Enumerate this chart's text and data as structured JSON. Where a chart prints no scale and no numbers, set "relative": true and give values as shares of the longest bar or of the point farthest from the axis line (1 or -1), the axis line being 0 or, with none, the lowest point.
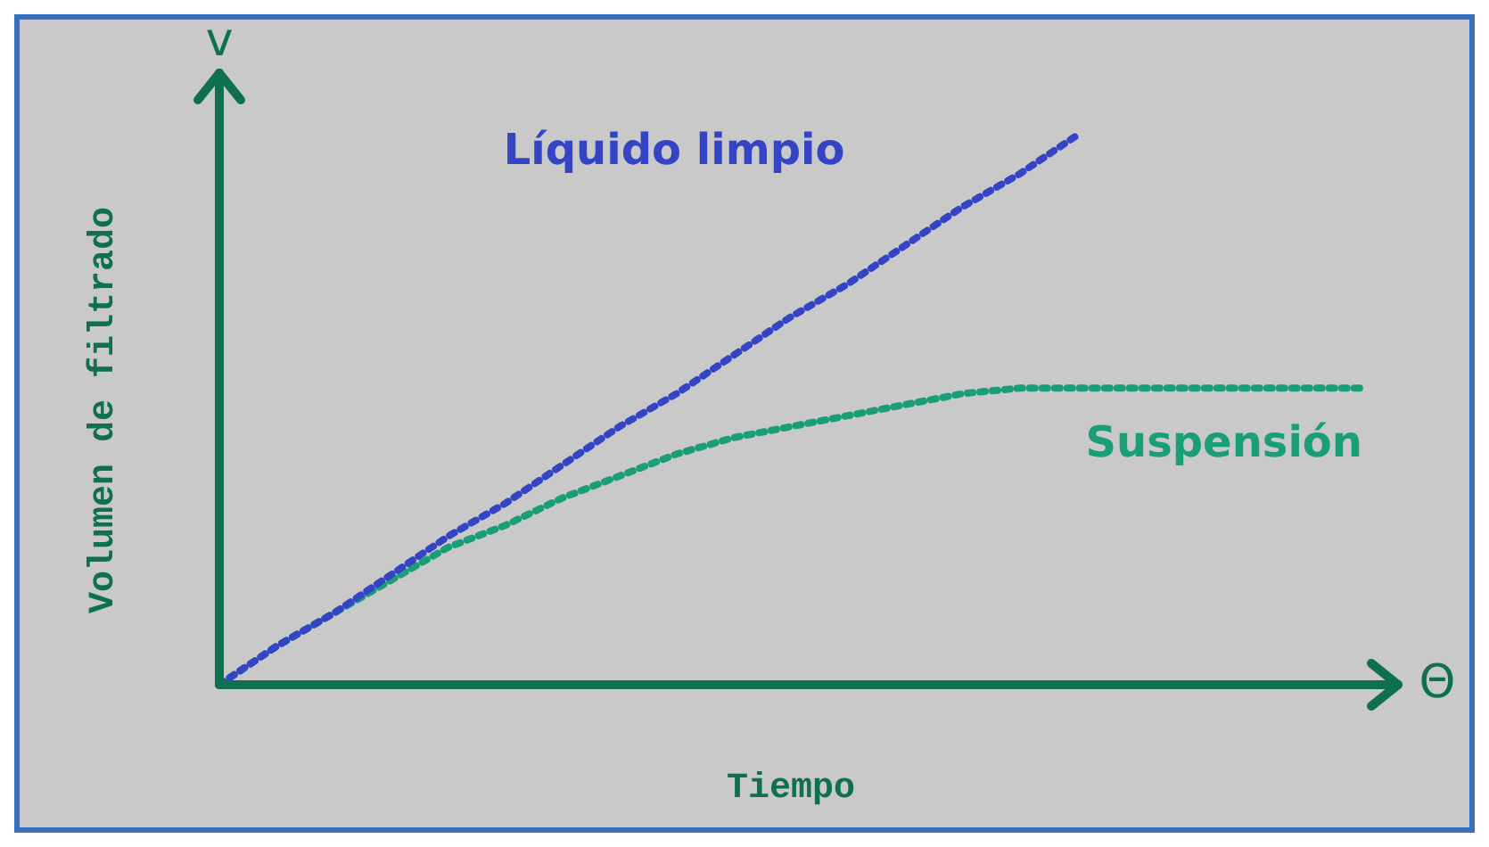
{
  "chart_data": {
    "type": "line",
    "relative": true,
    "xlabel": "Tiempo",
    "ylabel": "Volumen de filtrado",
    "annotations": [
      "v",
      "Θ"
    ],
    "categories": [
      null,
      null,
      null,
      null,
      null,
      null,
      null,
      null,
      null,
      null,
      null,
      null,
      null,
      null,
      null,
      null,
      null,
      null,
      null,
      null,
      null
    ],
    "series": [
      {
        "name": "Líquido limpio",
        "color": "#3344c4",
        "values": [
          0,
          0.07,
          0.13,
          0.2,
          0.27,
          0.33,
          0.4,
          0.47,
          0.53,
          0.6,
          0.67,
          0.73,
          0.8,
          0.87,
          0.93,
          1,
          null,
          null,
          null,
          null,
          null
        ]
      },
      {
        "name": "Suspensión",
        "color": "#1a9e78",
        "values": [
          0,
          0.07,
          0.13,
          0.19,
          0.25,
          0.29,
          0.34,
          0.38,
          0.42,
          0.45,
          0.47,
          0.49,
          0.51,
          0.53,
          0.54,
          0.54,
          0.54,
          0.54,
          0.54,
          0.54,
          0.54
        ]
      }
    ],
    "legend": false,
    "marker": "none",
    "line_style": "dotted"
  }
}
